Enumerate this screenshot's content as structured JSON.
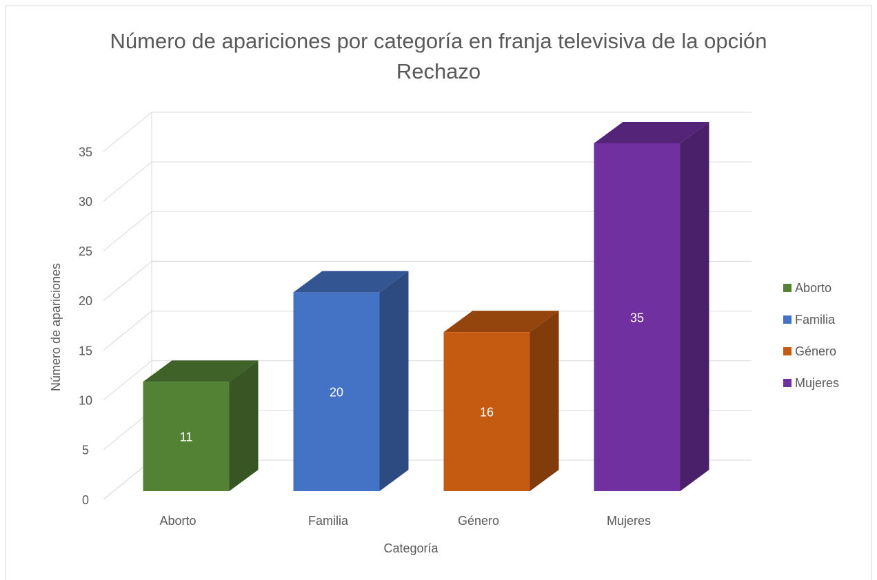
{
  "chart_data": {
    "type": "bar3d",
    "title": "Número de apariciones por categoría en franja televisiva de la opción Rechazo",
    "x_label": "Categoría",
    "y_label": "Número de apariciones",
    "categories": [
      "Aborto",
      "Familia",
      "Género",
      "Mujeres"
    ],
    "values": [
      11,
      20,
      16,
      35
    ],
    "colors": [
      "#548235",
      "#4472c4",
      "#c55a11",
      "#7030a0"
    ],
    "ylim": [
      0,
      35
    ],
    "yticks": [
      0,
      5,
      10,
      15,
      20,
      25,
      30,
      35
    ],
    "grid": true,
    "legend": "right"
  }
}
